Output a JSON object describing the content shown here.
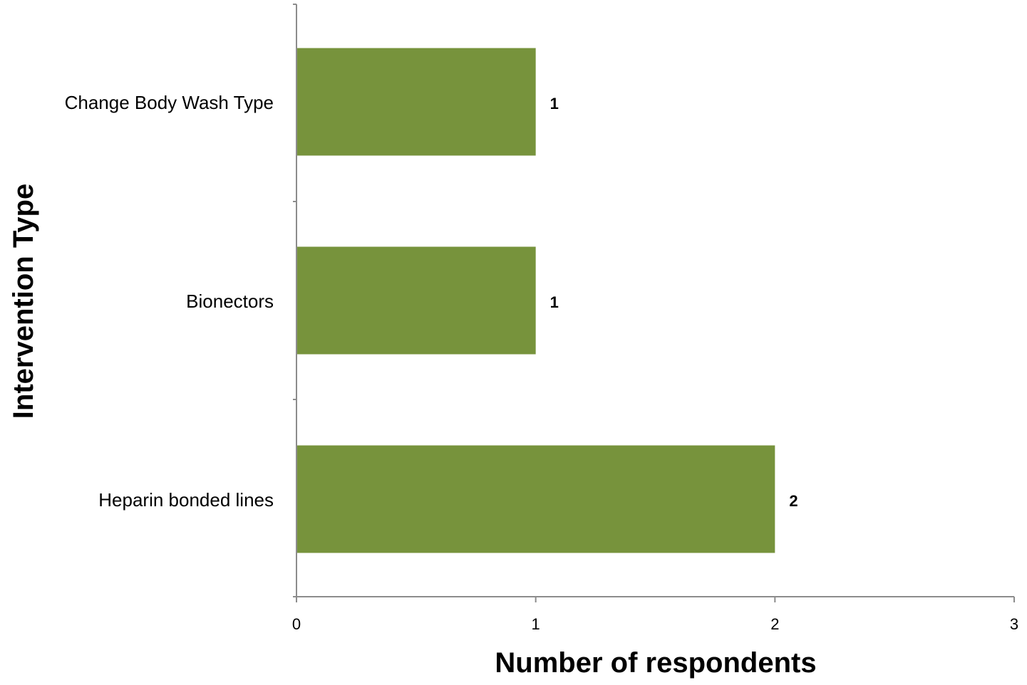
{
  "chart_data": {
    "type": "bar",
    "orientation": "horizontal",
    "categories": [
      "Change Body Wash Type",
      "Bionectors",
      "Heparin bonded  lines"
    ],
    "values": [
      1,
      1,
      2
    ],
    "data_labels": [
      "1",
      "1",
      "2"
    ],
    "xlabel": "Number of respondents",
    "ylabel": "Intervention Type",
    "xlim": [
      0,
      3
    ],
    "x_ticks": [
      0,
      1,
      2,
      3
    ],
    "x_tick_labels": [
      "0",
      "1",
      "2",
      "3"
    ],
    "grid": false,
    "legend": "none",
    "bar_color": "#77933c",
    "axis_color": "#8c8c8c"
  }
}
